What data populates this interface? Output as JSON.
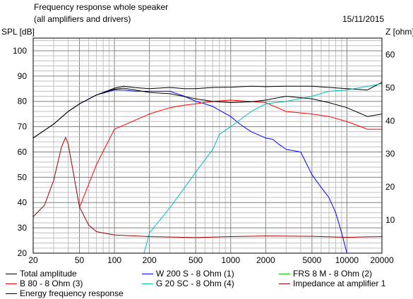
{
  "header": {
    "title": "Frequency response whole speaker",
    "subtitle": "(all amplifiers and drivers)",
    "date": "15/11/2015"
  },
  "chart_data": {
    "type": "line",
    "title": "Frequency response whole speaker",
    "subtitle": "(all amplifiers and drivers)",
    "xlabel": "",
    "ylabel": "SPL [dB]",
    "y2label": "Z [ohm]",
    "x_scale": "log",
    "xlim": [
      20,
      20000
    ],
    "ylim": [
      20,
      105
    ],
    "y2lim": [
      0,
      65
    ],
    "x_ticks": [
      20,
      50,
      100,
      200,
      500,
      1000,
      2000,
      5000,
      10000,
      20000
    ],
    "x_tick_labels": [
      "20",
      "50",
      "100",
      "200",
      "500",
      "1000",
      "2000",
      "5000",
      "10000",
      "20000"
    ],
    "y_ticks": [
      20,
      30,
      40,
      50,
      60,
      70,
      80,
      90,
      100
    ],
    "y_tick_labels": [
      "20",
      "30",
      "40",
      "50",
      "60",
      "70",
      "80",
      "90",
      "100"
    ],
    "y2_ticks": [
      10,
      20,
      30,
      40,
      50,
      60
    ],
    "y2_tick_labels": [
      "10",
      "20",
      "30",
      "40",
      "50",
      "60"
    ],
    "grid": true,
    "legend_position": "bottom",
    "series": [
      {
        "name": "Total amplitude",
        "axis": "left",
        "color": "#000000",
        "x": [
          20,
          30,
          40,
          50,
          70,
          100,
          120,
          150,
          200,
          300,
          400,
          500,
          700,
          1000,
          1500,
          2000,
          3000,
          5000,
          7000,
          10000,
          15000,
          20000
        ],
        "y": [
          65.5,
          71,
          76,
          79,
          82.5,
          85.2,
          86,
          85.4,
          85,
          85.5,
          85,
          85,
          85.5,
          85.6,
          86,
          85.8,
          86,
          86,
          85.5,
          85,
          84.5,
          87.5
        ]
      },
      {
        "name": "W 200 S - 8 Ohm (1)",
        "axis": "left",
        "color": "#0000ff",
        "x": [
          50,
          70,
          100,
          120,
          150,
          200,
          300,
          400,
          500,
          600,
          700,
          800,
          1000,
          1200,
          1500,
          2000,
          2300,
          2600,
          3000,
          4000,
          5000,
          6000,
          7000,
          8000,
          9000,
          10000,
          20000
        ],
        "y": [
          79,
          82.5,
          84.5,
          84.5,
          84,
          84,
          84,
          82,
          80,
          79,
          78,
          76.5,
          74,
          71,
          68,
          65.5,
          65,
          63,
          61,
          60,
          51,
          46,
          42,
          36,
          28,
          20,
          20
        ]
      },
      {
        "name": "FRS 8 M - 8 Ohm (2)",
        "axis": "left",
        "color": "#00cc00",
        "x": [
          20,
          20000
        ],
        "y": [
          20,
          20
        ]
      },
      {
        "name": "B 80 - 8 Ohm (3)",
        "axis": "left",
        "color": "#ff0000",
        "x": [
          50,
          70,
          100,
          150,
          200,
          300,
          400,
          500,
          700,
          1000,
          2000,
          3000,
          5000,
          7000,
          10000,
          15000,
          20000
        ],
        "y": [
          38,
          55,
          69,
          72.5,
          75,
          77.5,
          78.5,
          79,
          80,
          80.5,
          79.5,
          76,
          75,
          74,
          72,
          69,
          69
        ]
      },
      {
        "name": "G 20 SC - 8 Ohm (4)",
        "axis": "left",
        "color": "#00c0c0",
        "x": [
          180,
          200,
          300,
          500,
          700,
          800,
          1000,
          1500,
          2000,
          3000,
          5000,
          7000,
          10000,
          20000
        ],
        "y": [
          20,
          28,
          38,
          52,
          61,
          67,
          70,
          76,
          79,
          80,
          82,
          84,
          84.5,
          87
        ]
      },
      {
        "name": "Impedance at amplifier 1",
        "axis": "right",
        "color": "#990000",
        "x": [
          20,
          25,
          30,
          35,
          38,
          40,
          45,
          50,
          60,
          70,
          100,
          200,
          500,
          1000,
          2000,
          5000,
          10000,
          20000
        ],
        "y": [
          11,
          14.5,
          22,
          32,
          35,
          33,
          23,
          14,
          8.5,
          6.5,
          5.5,
          5,
          4.7,
          5,
          5.2,
          5.1,
          4.8,
          5
        ]
      },
      {
        "name": "Energy frequency response",
        "axis": "left",
        "color": "#000000",
        "x": [
          20,
          30,
          40,
          50,
          70,
          100,
          120,
          150,
          200,
          300,
          500,
          700,
          1000,
          1500,
          2000,
          3000,
          5000,
          7000,
          10000,
          15000,
          20000
        ],
        "y": [
          65.5,
          71,
          76,
          79,
          82.5,
          84.8,
          85.2,
          84.5,
          83.5,
          83,
          81,
          80,
          79.5,
          79.8,
          80.5,
          82,
          81,
          79.5,
          77.5,
          74,
          75
        ]
      }
    ]
  }
}
